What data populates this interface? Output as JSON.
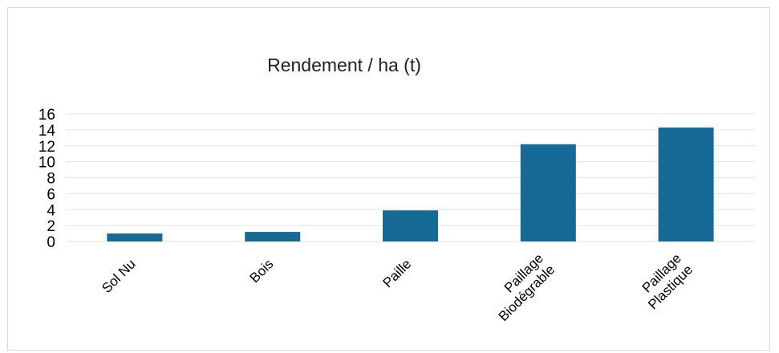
{
  "chart_data": {
    "type": "bar",
    "title": "Rendement / ha (t)",
    "categories": [
      [
        "Sol Nu"
      ],
      [
        "Bois"
      ],
      [
        "Paille"
      ],
      [
        "Paillage",
        "Biodégrable"
      ],
      [
        "Paillage",
        "Plastique"
      ]
    ],
    "values": [
      1.0,
      1.2,
      3.9,
      12.2,
      14.3
    ],
    "xlabel": "",
    "ylabel": "",
    "ylim": [
      0,
      16
    ],
    "yticks": [
      0,
      2,
      4,
      6,
      8,
      10,
      12,
      14,
      16
    ],
    "grid": true,
    "legend": "none",
    "bar_color": "#156a96",
    "grid_color": "#e3e3e3"
  }
}
